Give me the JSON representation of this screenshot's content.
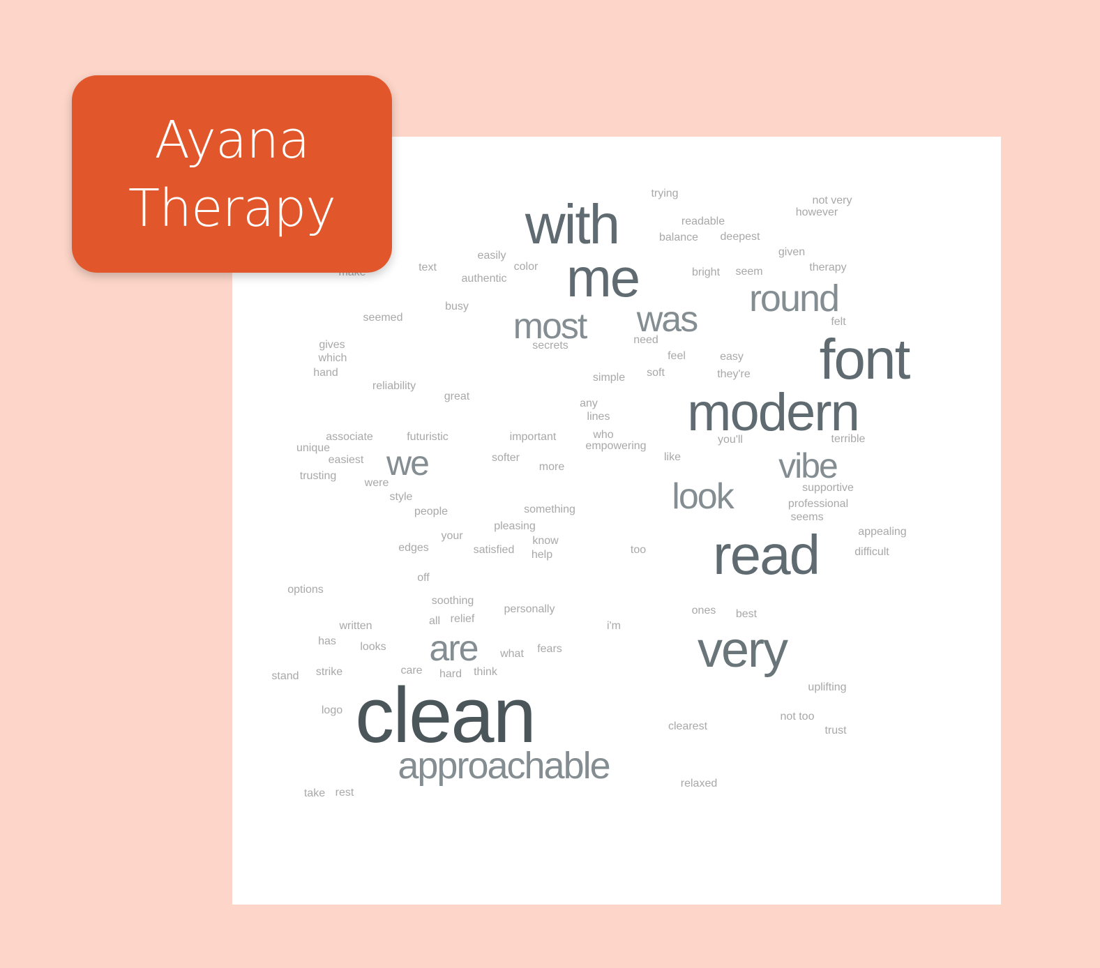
{
  "brand": {
    "line1": "Ayana",
    "line2": "Therapy",
    "background_color": "#e1572b",
    "text_color": "#ffffff"
  },
  "page": {
    "background_color": "#fdd6c9",
    "panel_color": "#ffffff"
  },
  "word_cloud": {
    "words": [
      {
        "text": "clean",
        "weight": 1.0,
        "color": "#4b565b"
      },
      {
        "text": "with",
        "weight": 0.78,
        "color": "#5f6b70"
      },
      {
        "text": "me",
        "weight": 0.78,
        "color": "#5f6b70"
      },
      {
        "text": "font",
        "weight": 0.8,
        "color": "#5f6b70"
      },
      {
        "text": "modern",
        "weight": 0.78,
        "color": "#5f6b70"
      },
      {
        "text": "read",
        "weight": 0.78,
        "color": "#5f6b70"
      },
      {
        "text": "very",
        "weight": 0.72,
        "color": "#697579"
      },
      {
        "text": "round",
        "weight": 0.55,
        "color": "#848d91"
      },
      {
        "text": "was",
        "weight": 0.55,
        "color": "#848d91"
      },
      {
        "text": "most",
        "weight": 0.55,
        "color": "#848d91"
      },
      {
        "text": "vibe",
        "weight": 0.55,
        "color": "#848d91"
      },
      {
        "text": "look",
        "weight": 0.55,
        "color": "#848d91"
      },
      {
        "text": "we",
        "weight": 0.55,
        "color": "#848d91"
      },
      {
        "text": "are",
        "weight": 0.55,
        "color": "#848d91"
      },
      {
        "text": "approachable",
        "weight": 0.58,
        "color": "#848d91"
      },
      {
        "text": "trying",
        "weight": 0.1,
        "color": "#a8a8a8"
      },
      {
        "text": "not very",
        "weight": 0.1,
        "color": "#a8a8a8"
      },
      {
        "text": "however",
        "weight": 0.1,
        "color": "#a8a8a8"
      },
      {
        "text": "readable",
        "weight": 0.1,
        "color": "#a8a8a8"
      },
      {
        "text": "balance",
        "weight": 0.1,
        "color": "#a8a8a8"
      },
      {
        "text": "deepest",
        "weight": 0.1,
        "color": "#a8a8a8"
      },
      {
        "text": "given",
        "weight": 0.1,
        "color": "#a8a8a8"
      },
      {
        "text": "therapy",
        "weight": 0.1,
        "color": "#a8a8a8"
      },
      {
        "text": "easily",
        "weight": 0.1,
        "color": "#a8a8a8"
      },
      {
        "text": "color",
        "weight": 0.1,
        "color": "#a8a8a8"
      },
      {
        "text": "text",
        "weight": 0.1,
        "color": "#a8a8a8"
      },
      {
        "text": "authentic",
        "weight": 0.1,
        "color": "#a8a8a8"
      },
      {
        "text": "bright",
        "weight": 0.1,
        "color": "#a8a8a8"
      },
      {
        "text": "seem",
        "weight": 0.1,
        "color": "#a8a8a8"
      },
      {
        "text": "make",
        "weight": 0.1,
        "color": "#a8a8a8"
      },
      {
        "text": "busy",
        "weight": 0.1,
        "color": "#a8a8a8"
      },
      {
        "text": "seemed",
        "weight": 0.1,
        "color": "#a8a8a8"
      },
      {
        "text": "felt",
        "weight": 0.1,
        "color": "#a8a8a8"
      },
      {
        "text": "need",
        "weight": 0.1,
        "color": "#a8a8a8"
      },
      {
        "text": "secrets",
        "weight": 0.1,
        "color": "#a8a8a8"
      },
      {
        "text": "gives",
        "weight": 0.1,
        "color": "#a8a8a8"
      },
      {
        "text": "which",
        "weight": 0.1,
        "color": "#a8a8a8"
      },
      {
        "text": "hand",
        "weight": 0.1,
        "color": "#a8a8a8"
      },
      {
        "text": "feel",
        "weight": 0.1,
        "color": "#a8a8a8"
      },
      {
        "text": "easy",
        "weight": 0.1,
        "color": "#a8a8a8"
      },
      {
        "text": "soft",
        "weight": 0.1,
        "color": "#a8a8a8"
      },
      {
        "text": "they're",
        "weight": 0.1,
        "color": "#a8a8a8"
      },
      {
        "text": "simple",
        "weight": 0.1,
        "color": "#a8a8a8"
      },
      {
        "text": "reliability",
        "weight": 0.1,
        "color": "#a8a8a8"
      },
      {
        "text": "great",
        "weight": 0.1,
        "color": "#a8a8a8"
      },
      {
        "text": "any",
        "weight": 0.1,
        "color": "#a8a8a8"
      },
      {
        "text": "lines",
        "weight": 0.1,
        "color": "#a8a8a8"
      },
      {
        "text": "associate",
        "weight": 0.1,
        "color": "#a8a8a8"
      },
      {
        "text": "futuristic",
        "weight": 0.1,
        "color": "#a8a8a8"
      },
      {
        "text": "important",
        "weight": 0.1,
        "color": "#a8a8a8"
      },
      {
        "text": "who",
        "weight": 0.1,
        "color": "#a8a8a8"
      },
      {
        "text": "empowering",
        "weight": 0.1,
        "color": "#a8a8a8"
      },
      {
        "text": "you'll",
        "weight": 0.1,
        "color": "#a8a8a8"
      },
      {
        "text": "terrible",
        "weight": 0.1,
        "color": "#a8a8a8"
      },
      {
        "text": "unique",
        "weight": 0.1,
        "color": "#a8a8a8"
      },
      {
        "text": "easiest",
        "weight": 0.1,
        "color": "#a8a8a8"
      },
      {
        "text": "softer",
        "weight": 0.1,
        "color": "#a8a8a8"
      },
      {
        "text": "like",
        "weight": 0.1,
        "color": "#a8a8a8"
      },
      {
        "text": "more",
        "weight": 0.1,
        "color": "#a8a8a8"
      },
      {
        "text": "trusting",
        "weight": 0.1,
        "color": "#a8a8a8"
      },
      {
        "text": "were",
        "weight": 0.1,
        "color": "#a8a8a8"
      },
      {
        "text": "supportive",
        "weight": 0.1,
        "color": "#a8a8a8"
      },
      {
        "text": "style",
        "weight": 0.1,
        "color": "#a8a8a8"
      },
      {
        "text": "professional",
        "weight": 0.1,
        "color": "#a8a8a8"
      },
      {
        "text": "people",
        "weight": 0.1,
        "color": "#a8a8a8"
      },
      {
        "text": "something",
        "weight": 0.1,
        "color": "#a8a8a8"
      },
      {
        "text": "seems",
        "weight": 0.1,
        "color": "#a8a8a8"
      },
      {
        "text": "pleasing",
        "weight": 0.1,
        "color": "#a8a8a8"
      },
      {
        "text": "appealing",
        "weight": 0.1,
        "color": "#a8a8a8"
      },
      {
        "text": "your",
        "weight": 0.1,
        "color": "#a8a8a8"
      },
      {
        "text": "know",
        "weight": 0.1,
        "color": "#a8a8a8"
      },
      {
        "text": "edges",
        "weight": 0.1,
        "color": "#a8a8a8"
      },
      {
        "text": "satisfied",
        "weight": 0.1,
        "color": "#a8a8a8"
      },
      {
        "text": "help",
        "weight": 0.1,
        "color": "#a8a8a8"
      },
      {
        "text": "too",
        "weight": 0.1,
        "color": "#a8a8a8"
      },
      {
        "text": "difficult",
        "weight": 0.1,
        "color": "#a8a8a8"
      },
      {
        "text": "off",
        "weight": 0.1,
        "color": "#a8a8a8"
      },
      {
        "text": "options",
        "weight": 0.1,
        "color": "#a8a8a8"
      },
      {
        "text": "soothing",
        "weight": 0.1,
        "color": "#a8a8a8"
      },
      {
        "text": "personally",
        "weight": 0.1,
        "color": "#a8a8a8"
      },
      {
        "text": "ones",
        "weight": 0.1,
        "color": "#a8a8a8"
      },
      {
        "text": "best",
        "weight": 0.1,
        "color": "#a8a8a8"
      },
      {
        "text": "all",
        "weight": 0.1,
        "color": "#a8a8a8"
      },
      {
        "text": "relief",
        "weight": 0.1,
        "color": "#a8a8a8"
      },
      {
        "text": "written",
        "weight": 0.1,
        "color": "#a8a8a8"
      },
      {
        "text": "i'm",
        "weight": 0.1,
        "color": "#a8a8a8"
      },
      {
        "text": "has",
        "weight": 0.1,
        "color": "#a8a8a8"
      },
      {
        "text": "looks",
        "weight": 0.1,
        "color": "#a8a8a8"
      },
      {
        "text": "what",
        "weight": 0.1,
        "color": "#a8a8a8"
      },
      {
        "text": "fears",
        "weight": 0.1,
        "color": "#a8a8a8"
      },
      {
        "text": "stand",
        "weight": 0.1,
        "color": "#a8a8a8"
      },
      {
        "text": "strike",
        "weight": 0.1,
        "color": "#a8a8a8"
      },
      {
        "text": "care",
        "weight": 0.1,
        "color": "#a8a8a8"
      },
      {
        "text": "hard",
        "weight": 0.1,
        "color": "#a8a8a8"
      },
      {
        "text": "think",
        "weight": 0.1,
        "color": "#a8a8a8"
      },
      {
        "text": "uplifting",
        "weight": 0.1,
        "color": "#a8a8a8"
      },
      {
        "text": "logo",
        "weight": 0.1,
        "color": "#a8a8a8"
      },
      {
        "text": "clearest",
        "weight": 0.1,
        "color": "#a8a8a8"
      },
      {
        "text": "not too",
        "weight": 0.1,
        "color": "#a8a8a8"
      },
      {
        "text": "trust",
        "weight": 0.1,
        "color": "#a8a8a8"
      },
      {
        "text": "relaxed",
        "weight": 0.1,
        "color": "#a8a8a8"
      },
      {
        "text": "take",
        "weight": 0.1,
        "color": "#a8a8a8"
      },
      {
        "text": "rest",
        "weight": 0.1,
        "color": "#a8a8a8"
      }
    ]
  }
}
